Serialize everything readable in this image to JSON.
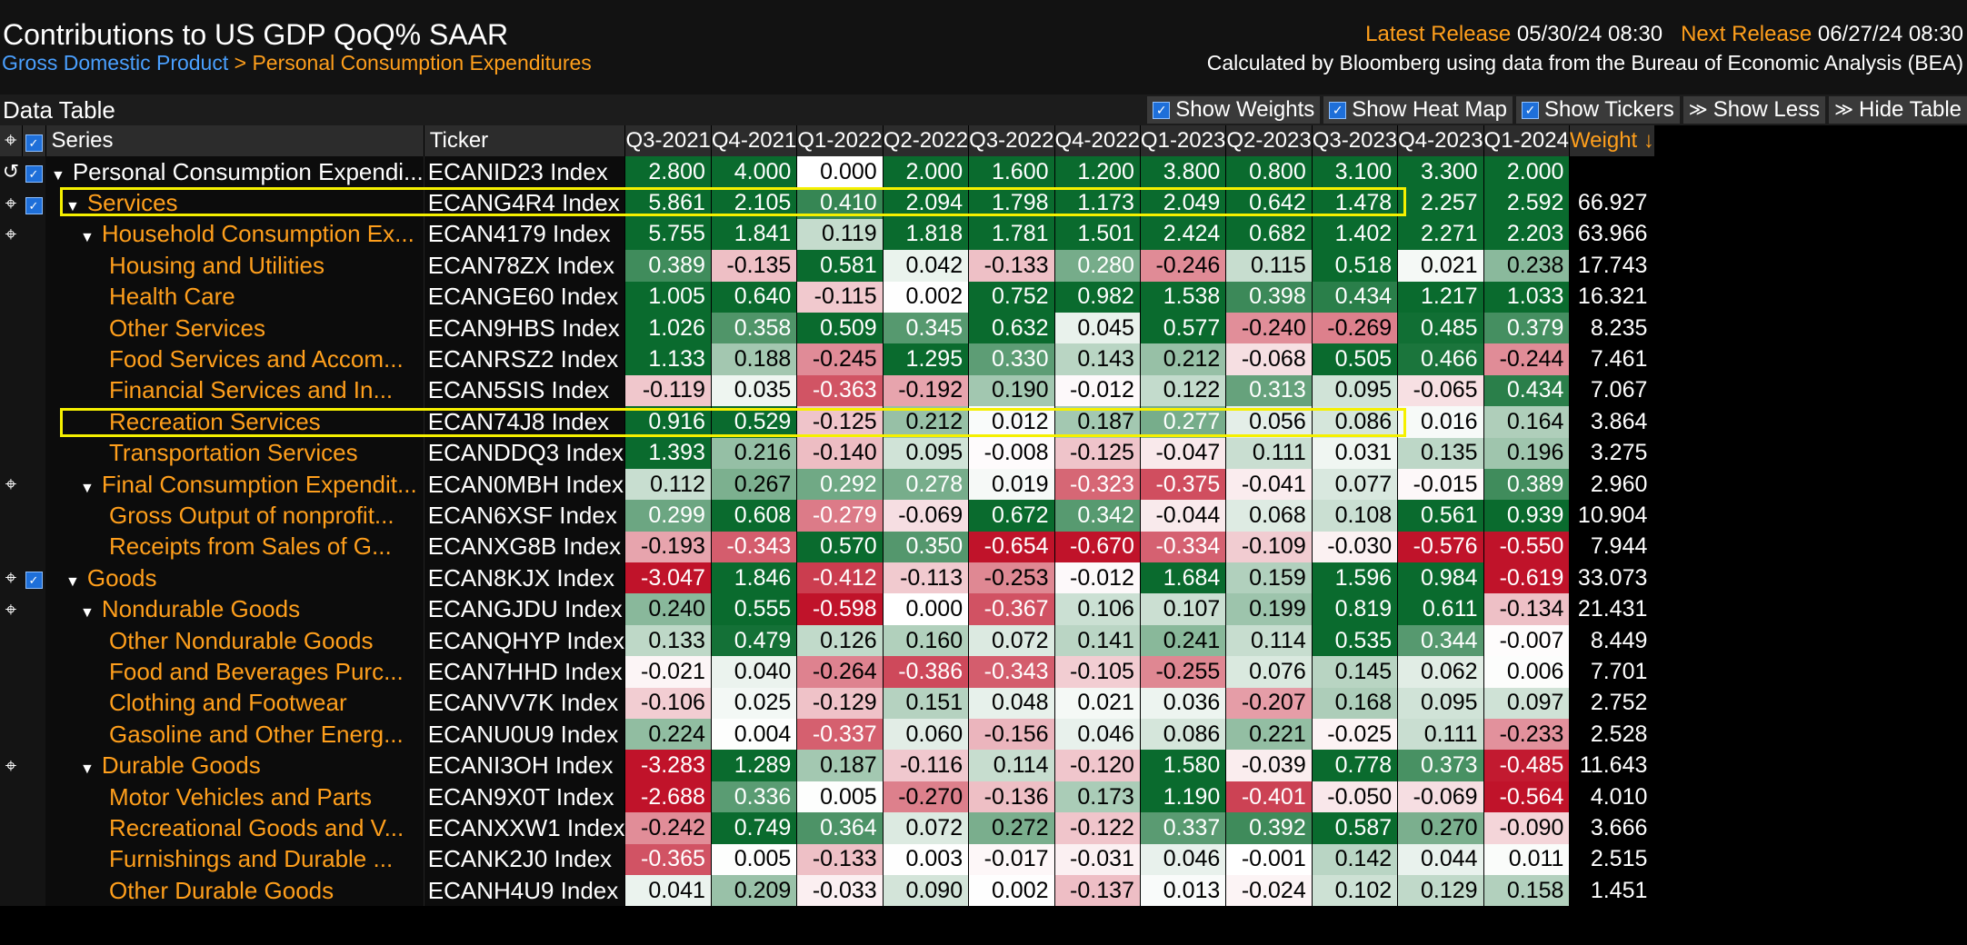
{
  "header": {
    "title": "Contributions to US GDP QoQ% SAAR",
    "breadcrumb_root": "Gross Domestic Product",
    "breadcrumb_sep": ">",
    "breadcrumb_current": "Personal Consumption Expenditures",
    "latest_release_label": "Latest Release",
    "latest_release_value": "05/30/24 08:30",
    "next_release_label": "Next Release",
    "next_release_value": "06/27/24 08:30",
    "calc_note": "Calculated by Bloomberg using data from the Bureau of Economic Analysis (BEA)"
  },
  "toolbar": {
    "data_table_label": "Data Table",
    "show_weights": "Show Weights",
    "show_heat_map": "Show Heat Map",
    "show_tickers": "Show Tickers",
    "show_less": "Show Less",
    "hide_table": "Hide Table"
  },
  "columns": {
    "series": "Series",
    "ticker": "Ticker",
    "quarters": [
      "Q3-2021",
      "Q4-2021",
      "Q1-2022",
      "Q2-2022",
      "Q3-2022",
      "Q4-2022",
      "Q1-2023",
      "Q2-2023",
      "Q3-2023",
      "Q4-2023",
      "Q1-2024"
    ],
    "weight": "Weight ↓"
  },
  "rows": [
    {
      "series": "Personal Consumption Expendi...",
      "ticker": "ECANID23 Index",
      "level": 0,
      "expand": true,
      "icon": "undo",
      "check": true,
      "top": true,
      "values": [
        "2.800",
        "4.000",
        "0.000",
        "2.000",
        "1.600",
        "1.200",
        "3.800",
        "0.800",
        "3.100",
        "3.300",
        "2.000"
      ],
      "weight": ""
    },
    {
      "series": "Services",
      "ticker": "ECANG4R4 Index",
      "level": 1,
      "expand": true,
      "icon": "cross",
      "check": true,
      "values": [
        "5.861",
        "2.105",
        "0.410",
        "2.094",
        "1.798",
        "1.173",
        "2.049",
        "0.642",
        "1.478",
        "2.257",
        "2.592"
      ],
      "weight": "66.927"
    },
    {
      "series": "Household Consumption Ex...",
      "ticker": "ECAN4179 Index",
      "level": 2,
      "expand": true,
      "icon": "cross",
      "check": false,
      "values": [
        "5.755",
        "1.841",
        "0.119",
        "1.818",
        "1.781",
        "1.501",
        "2.424",
        "0.682",
        "1.402",
        "2.271",
        "2.203"
      ],
      "weight": "63.966"
    },
    {
      "series": "Housing and Utilities",
      "ticker": "ECAN78ZX Index",
      "level": 3,
      "expand": false,
      "icon": "",
      "check": false,
      "values": [
        "0.389",
        "-0.135",
        "0.581",
        "0.042",
        "-0.133",
        "0.280",
        "-0.246",
        "0.115",
        "0.518",
        "0.021",
        "0.238"
      ],
      "weight": "17.743"
    },
    {
      "series": "Health Care",
      "ticker": "ECANGE60 Index",
      "level": 3,
      "expand": false,
      "icon": "",
      "check": false,
      "values": [
        "1.005",
        "0.640",
        "-0.115",
        "0.002",
        "0.752",
        "0.982",
        "1.538",
        "0.398",
        "0.434",
        "1.217",
        "1.033"
      ],
      "weight": "16.321"
    },
    {
      "series": "Other Services",
      "ticker": "ECAN9HBS Index",
      "level": 3,
      "expand": false,
      "icon": "",
      "check": false,
      "values": [
        "1.026",
        "0.358",
        "0.509",
        "0.345",
        "0.632",
        "0.045",
        "0.577",
        "-0.240",
        "-0.269",
        "0.485",
        "0.379"
      ],
      "weight": "8.235"
    },
    {
      "series": "Food Services and Accom...",
      "ticker": "ECANRSZ2 Index",
      "level": 3,
      "expand": false,
      "icon": "",
      "check": false,
      "values": [
        "1.133",
        "0.188",
        "-0.245",
        "1.295",
        "0.330",
        "0.143",
        "0.212",
        "-0.068",
        "0.505",
        "0.466",
        "-0.244"
      ],
      "weight": "7.461"
    },
    {
      "series": "Financial Services and In...",
      "ticker": "ECAN5SIS Index",
      "level": 3,
      "expand": false,
      "icon": "",
      "check": false,
      "values": [
        "-0.119",
        "0.035",
        "-0.363",
        "-0.192",
        "0.190",
        "-0.012",
        "0.122",
        "0.313",
        "0.095",
        "-0.065",
        "0.434"
      ],
      "weight": "7.067"
    },
    {
      "series": "Recreation Services",
      "ticker": "ECAN74J8 Index",
      "level": 3,
      "expand": false,
      "icon": "",
      "check": false,
      "values": [
        "0.916",
        "0.529",
        "-0.125",
        "0.212",
        "0.012",
        "0.187",
        "0.277",
        "0.056",
        "0.086",
        "0.016",
        "0.164"
      ],
      "weight": "3.864"
    },
    {
      "series": "Transportation Services",
      "ticker": "ECANDDQ3 Index",
      "level": 3,
      "expand": false,
      "icon": "",
      "check": false,
      "values": [
        "1.393",
        "0.216",
        "-0.140",
        "0.095",
        "-0.008",
        "-0.125",
        "-0.047",
        "0.111",
        "0.031",
        "0.135",
        "0.196"
      ],
      "weight": "3.275"
    },
    {
      "series": "Final Consumption Expendit...",
      "ticker": "ECAN0MBH Index",
      "level": 2,
      "expand": true,
      "icon": "cross",
      "check": false,
      "values": [
        "0.112",
        "0.267",
        "0.292",
        "0.278",
        "0.019",
        "-0.323",
        "-0.375",
        "-0.041",
        "0.077",
        "-0.015",
        "0.389"
      ],
      "weight": "2.960"
    },
    {
      "series": "Gross Output of nonprofit...",
      "ticker": "ECAN6XSF Index",
      "level": 3,
      "expand": false,
      "icon": "",
      "check": false,
      "values": [
        "0.299",
        "0.608",
        "-0.279",
        "-0.069",
        "0.672",
        "0.342",
        "-0.044",
        "0.068",
        "0.108",
        "0.561",
        "0.939"
      ],
      "weight": "10.904"
    },
    {
      "series": "Receipts from Sales of G...",
      "ticker": "ECANXG8B Index",
      "level": 3,
      "expand": false,
      "icon": "",
      "check": false,
      "values": [
        "-0.193",
        "-0.343",
        "0.570",
        "0.350",
        "-0.654",
        "-0.670",
        "-0.334",
        "-0.109",
        "-0.030",
        "-0.576",
        "-0.550"
      ],
      "weight": "7.944"
    },
    {
      "series": "Goods",
      "ticker": "ECAN8KJX Index",
      "level": 1,
      "expand": true,
      "icon": "cross",
      "check": true,
      "values": [
        "-3.047",
        "1.846",
        "-0.412",
        "-0.113",
        "-0.253",
        "-0.012",
        "1.684",
        "0.159",
        "1.596",
        "0.984",
        "-0.619"
      ],
      "weight": "33.073"
    },
    {
      "series": "Nondurable Goods",
      "ticker": "ECANGJDU Index",
      "level": 2,
      "expand": true,
      "icon": "cross",
      "check": false,
      "values": [
        "0.240",
        "0.555",
        "-0.598",
        "0.000",
        "-0.367",
        "0.106",
        "0.107",
        "0.199",
        "0.819",
        "0.611",
        "-0.134"
      ],
      "weight": "21.431"
    },
    {
      "series": "Other Nondurable Goods",
      "ticker": "ECANQHYP Index",
      "level": 3,
      "expand": false,
      "icon": "",
      "check": false,
      "values": [
        "0.133",
        "0.479",
        "0.126",
        "0.160",
        "0.072",
        "0.141",
        "0.241",
        "0.114",
        "0.535",
        "0.344",
        "-0.007"
      ],
      "weight": "8.449"
    },
    {
      "series": "Food and Beverages Purc...",
      "ticker": "ECAN7HHD Index",
      "level": 3,
      "expand": false,
      "icon": "",
      "check": false,
      "values": [
        "-0.021",
        "0.040",
        "-0.264",
        "-0.386",
        "-0.343",
        "-0.105",
        "-0.255",
        "0.076",
        "0.145",
        "0.062",
        "0.006"
      ],
      "weight": "7.701"
    },
    {
      "series": "Clothing and Footwear",
      "ticker": "ECANVV7K Index",
      "level": 3,
      "expand": false,
      "icon": "",
      "check": false,
      "values": [
        "-0.106",
        "0.025",
        "-0.129",
        "0.151",
        "0.048",
        "0.021",
        "0.036",
        "-0.207",
        "0.168",
        "0.095",
        "0.097"
      ],
      "weight": "2.752"
    },
    {
      "series": "Gasoline and Other Energ...",
      "ticker": "ECANU0U9 Index",
      "level": 3,
      "expand": false,
      "icon": "",
      "check": false,
      "values": [
        "0.224",
        "0.004",
        "-0.337",
        "0.060",
        "-0.156",
        "0.046",
        "0.086",
        "0.221",
        "-0.025",
        "0.111",
        "-0.233"
      ],
      "weight": "2.528"
    },
    {
      "series": "Durable Goods",
      "ticker": "ECANI3OH Index",
      "level": 2,
      "expand": true,
      "icon": "cross",
      "check": false,
      "values": [
        "-3.283",
        "1.289",
        "0.187",
        "-0.116",
        "0.114",
        "-0.120",
        "1.580",
        "-0.039",
        "0.778",
        "0.373",
        "-0.485"
      ],
      "weight": "11.643"
    },
    {
      "series": "Motor Vehicles and Parts",
      "ticker": "ECAN9X0T Index",
      "level": 3,
      "expand": false,
      "icon": "",
      "check": false,
      "values": [
        "-2.688",
        "0.336",
        "0.005",
        "-0.270",
        "-0.136",
        "0.173",
        "1.190",
        "-0.401",
        "-0.050",
        "-0.069",
        "-0.564"
      ],
      "weight": "4.010"
    },
    {
      "series": "Recreational Goods and V...",
      "ticker": "ECANXXW1 Index",
      "level": 3,
      "expand": false,
      "icon": "",
      "check": false,
      "values": [
        "-0.242",
        "0.749",
        "0.364",
        "0.072",
        "0.272",
        "-0.122",
        "0.337",
        "0.392",
        "0.587",
        "0.270",
        "-0.090"
      ],
      "weight": "3.666"
    },
    {
      "series": "Furnishings and Durable ...",
      "ticker": "ECANK2J0 Index",
      "level": 3,
      "expand": false,
      "icon": "",
      "check": false,
      "values": [
        "-0.365",
        "0.005",
        "-0.133",
        "0.003",
        "-0.017",
        "-0.031",
        "0.046",
        "-0.001",
        "0.142",
        "0.044",
        "0.011"
      ],
      "weight": "2.515"
    },
    {
      "series": "Other Durable Goods",
      "ticker": "ECANH4U9 Index",
      "level": 3,
      "expand": false,
      "icon": "",
      "check": false,
      "values": [
        "0.041",
        "0.209",
        "-0.033",
        "0.090",
        "0.002",
        "-0.137",
        "0.013",
        "-0.024",
        "0.102",
        "0.129",
        "0.158"
      ],
      "weight": "1.451"
    }
  ],
  "colors": {
    "accent": "#ff9f1c",
    "link": "#4aa0ff",
    "highlight": "#f5f000",
    "pos_strong": "#0a6b2e",
    "neg_strong": "#c0132a"
  }
}
